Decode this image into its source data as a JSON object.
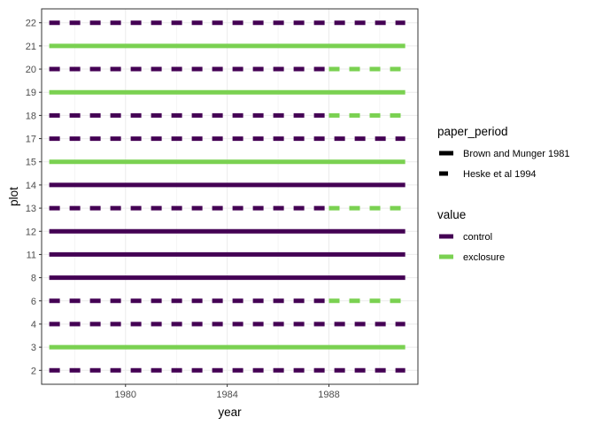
{
  "chart_data": {
    "type": "line",
    "title": "",
    "xlabel": "year",
    "ylabel": "plot",
    "xlim": [
      1976.7,
      1991.5
    ],
    "x_ticks": [
      1980,
      1984,
      1988
    ],
    "y_categories": [
      "2",
      "3",
      "4",
      "6",
      "8",
      "11",
      "12",
      "13",
      "14",
      "15",
      "17",
      "18",
      "19",
      "20",
      "21",
      "22"
    ],
    "grid": true,
    "legend_position": "right",
    "colors": {
      "control": "#440154",
      "exclosure": "#7AD151"
    },
    "legends": [
      {
        "title": "paper_period",
        "entries": [
          {
            "label": "Brown and Munger 1981",
            "linetype": "solid"
          },
          {
            "label": "Heske et al 1994",
            "linetype": "dashed"
          }
        ]
      },
      {
        "title": "value",
        "entries": [
          {
            "label": "control",
            "color": "control"
          },
          {
            "label": "exclosure",
            "color": "exclosure"
          }
        ]
      }
    ],
    "segments": [
      {
        "plot": "2",
        "value": "control",
        "linetype": "dashed",
        "x": [
          1977,
          1991
        ]
      },
      {
        "plot": "3",
        "value": "exclosure",
        "linetype": "solid",
        "x": [
          1977,
          1991
        ]
      },
      {
        "plot": "4",
        "value": "control",
        "linetype": "dashed",
        "x": [
          1977,
          1991
        ]
      },
      {
        "plot": "6",
        "value": "control",
        "linetype": "dashed",
        "x": [
          1977,
          1988
        ]
      },
      {
        "plot": "6",
        "value": "exclosure",
        "linetype": "dashed",
        "x": [
          1988,
          1991
        ]
      },
      {
        "plot": "8",
        "value": "control",
        "linetype": "solid",
        "x": [
          1977,
          1991
        ]
      },
      {
        "plot": "11",
        "value": "control",
        "linetype": "solid",
        "x": [
          1977,
          1991
        ]
      },
      {
        "plot": "12",
        "value": "control",
        "linetype": "solid",
        "x": [
          1977,
          1991
        ]
      },
      {
        "plot": "13",
        "value": "control",
        "linetype": "dashed",
        "x": [
          1977,
          1988
        ]
      },
      {
        "plot": "13",
        "value": "exclosure",
        "linetype": "dashed",
        "x": [
          1988,
          1991
        ]
      },
      {
        "plot": "14",
        "value": "control",
        "linetype": "solid",
        "x": [
          1977,
          1991
        ]
      },
      {
        "plot": "15",
        "value": "exclosure",
        "linetype": "solid",
        "x": [
          1977,
          1991
        ]
      },
      {
        "plot": "17",
        "value": "control",
        "linetype": "dashed",
        "x": [
          1977,
          1991
        ]
      },
      {
        "plot": "18",
        "value": "control",
        "linetype": "dashed",
        "x": [
          1977,
          1988
        ]
      },
      {
        "plot": "18",
        "value": "exclosure",
        "linetype": "dashed",
        "x": [
          1988,
          1991
        ]
      },
      {
        "plot": "19",
        "value": "exclosure",
        "linetype": "solid",
        "x": [
          1977,
          1991
        ]
      },
      {
        "plot": "20",
        "value": "control",
        "linetype": "dashed",
        "x": [
          1977,
          1988
        ]
      },
      {
        "plot": "20",
        "value": "exclosure",
        "linetype": "dashed",
        "x": [
          1988,
          1991
        ]
      },
      {
        "plot": "21",
        "value": "exclosure",
        "linetype": "solid",
        "x": [
          1977,
          1991
        ]
      },
      {
        "plot": "22",
        "value": "control",
        "linetype": "dashed",
        "x": [
          1977,
          1991
        ]
      }
    ]
  }
}
